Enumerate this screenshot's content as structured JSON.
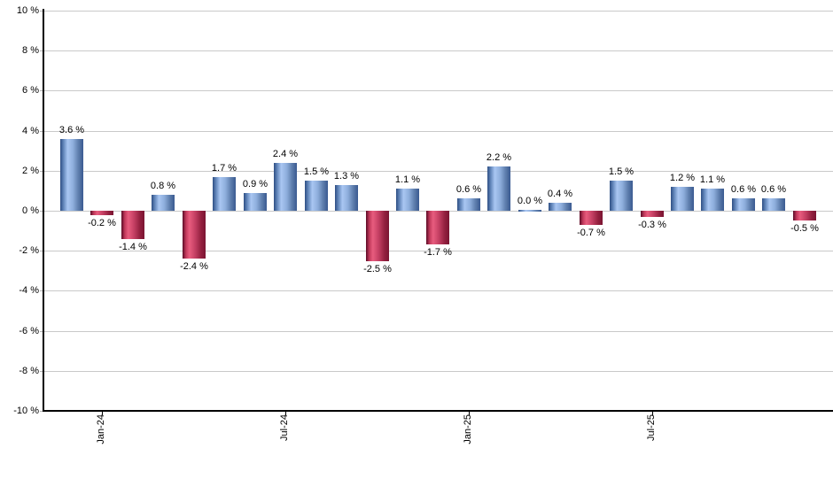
{
  "chart_data": {
    "type": "bar",
    "title": "",
    "xlabel": "",
    "ylabel": "",
    "ylim": [
      -10,
      10
    ],
    "ytick_step": 2,
    "grid": true,
    "legend_position": "none",
    "ytick_labels": [
      "10 %",
      "8 %",
      "6 %",
      "4 %",
      "2 %",
      "0 %",
      "-2 %",
      "-4 %",
      "-6 %",
      "-8 %",
      "-10 %"
    ],
    "values": [
      3.6,
      -0.2,
      -1.4,
      0.8,
      -2.4,
      1.7,
      0.9,
      2.4,
      1.5,
      1.3,
      -2.5,
      1.1,
      -1.7,
      0.6,
      2.2,
      0.0,
      0.4,
      -0.7,
      1.5,
      -0.3,
      1.2,
      1.1,
      0.6,
      0.6,
      -0.5
    ],
    "value_labels": [
      "3.6 %",
      "-0.2 %",
      "-1.4 %",
      "0.8 %",
      "-2.4 %",
      "1.7 %",
      "0.9 %",
      "2.4 %",
      "1.5 %",
      "1.3 %",
      "-2.5 %",
      "1.1 %",
      "-1.7 %",
      "0.6 %",
      "2.2 %",
      "0.0 %",
      "0.4 %",
      "-0.7 %",
      "1.5 %",
      "-0.3 %",
      "1.2 %",
      "1.1 %",
      "0.6 %",
      "0.6 %",
      "-0.5 %"
    ],
    "x_tick_labels": [
      {
        "label": "Jan-24",
        "bar_index": 1
      },
      {
        "label": "Jul-24",
        "bar_index": 7
      },
      {
        "label": "Jan-25",
        "bar_index": 13
      },
      {
        "label": "Jul-25",
        "bar_index": 19
      }
    ],
    "colors": {
      "positive_bar_light": "#a9c6f2",
      "positive_bar_dark": "#2e4e84",
      "negative_bar_light": "#e85c7e",
      "negative_bar_dark": "#5c0b26",
      "gridline": "#c9c9c9",
      "axis": "#000000",
      "text": "#000000"
    }
  }
}
